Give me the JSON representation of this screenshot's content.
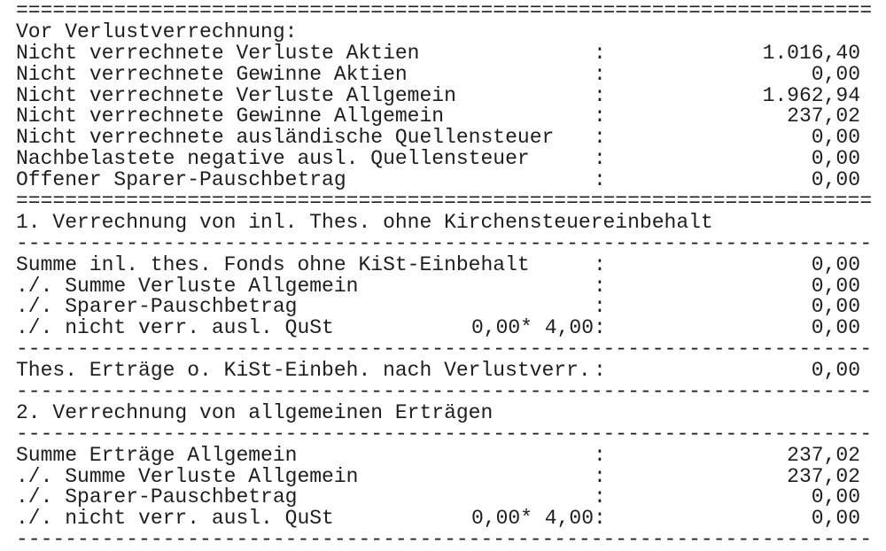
{
  "lines": [
    {
      "sep": "="
    },
    {
      "label": "Vor Verlustverrechnung:"
    },
    {
      "label": "Nicht verrechnete Verluste Aktien",
      "colon": ":",
      "value": "1.016,40"
    },
    {
      "label": "Nicht verrechnete Gewinne Aktien",
      "colon": ":",
      "value": "0,00"
    },
    {
      "label": "Nicht verrechnete Verluste Allgemein",
      "colon": ":",
      "value": "1.962,94"
    },
    {
      "label": "Nicht verrechnete Gewinne Allgemein",
      "colon": ":",
      "value": "237,02"
    },
    {
      "label": "Nicht verrechnete ausländische Quellensteuer",
      "colon": ":",
      "value": "0,00"
    },
    {
      "label": "Nachbelastete negative ausl. Quellensteuer",
      "colon": ":",
      "value": "0,00"
    },
    {
      "label": "Offener Sparer-Pauschbetrag",
      "colon": ":",
      "value": "0,00"
    },
    {
      "sep": "="
    },
    {
      "label": "1. Verrechnung von inl. Thes. ohne Kirchensteuereinbehalt"
    },
    {
      "sep": "-"
    },
    {
      "label": "Summe inl. thes. Fonds ohne KiSt-Einbehalt",
      "colon": ":",
      "value": "0,00"
    },
    {
      "label": "./. Summe Verluste Allgemein",
      "colon": ":",
      "value": "0,00"
    },
    {
      "label": "./. Sparer-Pauschbetrag",
      "colon": ":",
      "value": "0,00"
    },
    {
      "label": "./. nicht verr. ausl. QuSt",
      "mid": "0,00* 4,00",
      "colon": ":",
      "value": "0,00"
    },
    {
      "sep": "-"
    },
    {
      "label": "Thes. Erträge o. KiSt-Einbeh. nach Verlustverr.",
      "colon": ":",
      "value": "0,00"
    },
    {
      "sep": "-"
    },
    {
      "label": "2. Verrechnung von allgemeinen Erträgen"
    },
    {
      "sep": "-"
    },
    {
      "label": "Summe Erträge Allgemein",
      "colon": ":",
      "value": "237,02"
    },
    {
      "label": "./. Summe Verluste Allgemein",
      "colon": ":",
      "value": "237,02"
    },
    {
      "label": "./. Sparer-Pauschbetrag",
      "colon": ":",
      "value": "0,00"
    },
    {
      "label": "./. nicht verr. ausl. QuSt",
      "mid": "0,00* 4,00",
      "colon": ":",
      "value": "0,00"
    },
    {
      "sep": "-"
    }
  ]
}
